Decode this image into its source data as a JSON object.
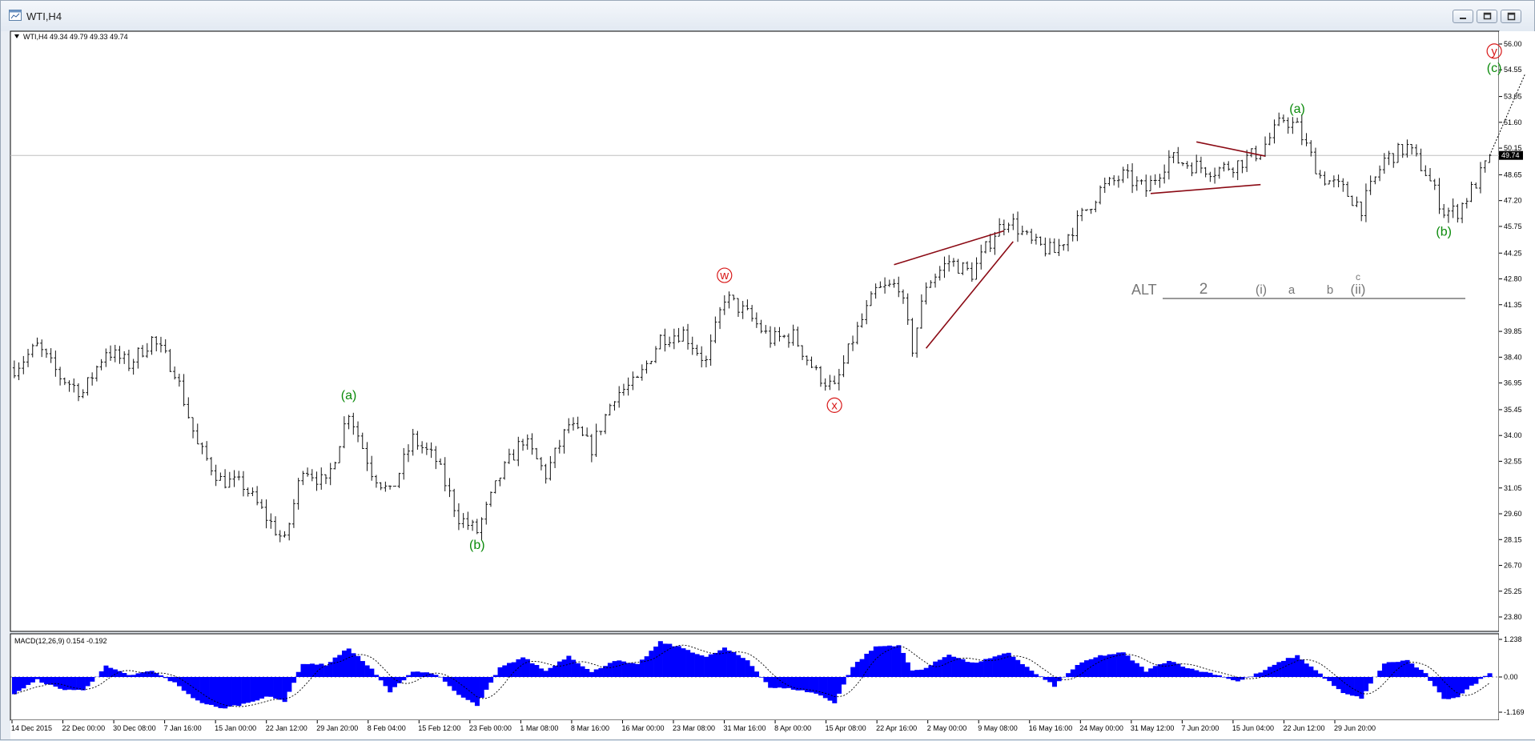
{
  "window": {
    "title": "WTI,H4",
    "icon": "chart-window-icon",
    "buttons": [
      "minimize-icon",
      "restore-icon",
      "close-icon"
    ]
  },
  "price_header": "WTI,H4  49.34 49.79 49.33 49.74",
  "macd_header": "MACD(12,26,9) 0.154 -0.192",
  "colors": {
    "candle": "#111111",
    "wave_green": "#0a8a0a",
    "wave_red": "#d81818",
    "trendline": "#8b0a14",
    "alt_gray": "#777777",
    "macd_hist": "#0000ff",
    "current_price_line": "#c0c0c0"
  },
  "chart_data": [
    {
      "type": "ohlc",
      "symbol": "WTI",
      "timeframe": "H4",
      "last": {
        "open": 49.34,
        "high": 49.79,
        "low": 49.33,
        "close": 49.74
      },
      "y_ticks": [
        "56.00",
        "54.55",
        "53.05",
        "51.60",
        "50.15",
        "48.65",
        "47.20",
        "45.75",
        "44.25",
        "42.80",
        "41.35",
        "39.85",
        "38.40",
        "36.95",
        "35.45",
        "34.00",
        "32.55",
        "31.05",
        "29.60",
        "28.15",
        "26.70",
        "25.25",
        "23.80"
      ],
      "ylim": [
        23.8,
        56.0
      ],
      "current_price_label": "49.74",
      "x_ticks": [
        "14 Dec 2015",
        "22 Dec 00:00",
        "30 Dec 08:00",
        "7 Jan 16:00",
        "15 Jan 00:00",
        "22 Jan 12:00",
        "29 Jan 20:00",
        "8 Feb 04:00",
        "15 Feb 12:00",
        "23 Feb 00:00",
        "1 Mar 08:00",
        "8 Mar 16:00",
        "16 Mar 00:00",
        "23 Mar 08:00",
        "31 Mar 16:00",
        "8 Apr 00:00",
        "15 Apr 08:00",
        "22 Apr 16:00",
        "2 May 00:00",
        "9 May 08:00",
        "16 May 16:00",
        "24 May 00:00",
        "31 May 12:00",
        "7 Jun 20:00",
        "15 Jun 04:00",
        "22 Jun 12:00",
        "29 Jun 20:00"
      ],
      "price_path": [
        [
          0,
          37.8
        ],
        [
          5,
          39.0
        ],
        [
          10,
          37.3
        ],
        [
          15,
          36.4
        ],
        [
          20,
          38.8
        ],
        [
          25,
          38.0
        ],
        [
          30,
          39.4
        ],
        [
          35,
          37.7
        ],
        [
          40,
          33.4
        ],
        [
          45,
          31.5
        ],
        [
          50,
          31.2
        ],
        [
          55,
          29.4
        ],
        [
          59,
          28.0
        ],
        [
          63,
          32.3
        ],
        [
          68,
          31.2
        ],
        [
          73,
          35.4
        ],
        [
          78,
          32.0
        ],
        [
          82,
          30.7
        ],
        [
          87,
          33.8
        ],
        [
          92,
          32.6
        ],
        [
          97,
          29.4
        ],
        [
          101,
          28.6
        ],
        [
          106,
          31.7
        ],
        [
          111,
          33.8
        ],
        [
          116,
          31.8
        ],
        [
          121,
          34.6
        ],
        [
          126,
          33.3
        ],
        [
          131,
          36.3
        ],
        [
          136,
          37.0
        ],
        [
          141,
          39.5
        ],
        [
          146,
          39.8
        ],
        [
          151,
          38.1
        ],
        [
          155,
          41.8
        ],
        [
          160,
          40.8
        ],
        [
          165,
          39.4
        ],
        [
          170,
          39.6
        ],
        [
          175,
          37.5
        ],
        [
          179,
          36.6
        ],
        [
          183,
          39.4
        ],
        [
          188,
          42.1
        ],
        [
          193,
          42.5
        ],
        [
          196,
          38.9
        ],
        [
          199,
          42.5
        ],
        [
          204,
          43.8
        ],
        [
          209,
          43.1
        ],
        [
          214,
          45.4
        ],
        [
          217,
          46.2
        ],
        [
          222,
          44.8
        ],
        [
          227,
          44.3
        ],
        [
          232,
          46.0
        ],
        [
          237,
          47.8
        ],
        [
          242,
          48.6
        ],
        [
          247,
          47.8
        ],
        [
          252,
          49.6
        ],
        [
          257,
          49.2
        ],
        [
          262,
          48.9
        ],
        [
          267,
          49.3
        ],
        [
          272,
          50.0
        ],
        [
          277,
          51.8
        ],
        [
          280,
          51.3
        ],
        [
          285,
          48.6
        ],
        [
          290,
          47.8
        ],
        [
          294,
          46.8
        ],
        [
          299,
          49.5
        ],
        [
          304,
          50.2
        ],
        [
          308,
          48.8
        ],
        [
          312,
          46.6
        ],
        [
          315,
          46.6
        ],
        [
          319,
          48.2
        ],
        [
          322,
          49.6
        ]
      ],
      "projection": {
        "from": 49.74,
        "to": 54.3,
        "style": "dotted"
      },
      "labels": [
        {
          "text": "(a)",
          "color": "wave_green",
          "at_bar": 73,
          "price": 36.3
        },
        {
          "text": "(b)",
          "color": "wave_green",
          "at_bar": 101,
          "price": 27.9
        },
        {
          "text": "w",
          "color": "wave_red",
          "circled": true,
          "at_bar": 155,
          "price": 43.0
        },
        {
          "text": "x",
          "color": "wave_red",
          "circled": true,
          "at_bar": 179,
          "price": 35.7
        },
        {
          "text": "(a)",
          "color": "wave_green",
          "at_bar": 280,
          "price": 52.4
        },
        {
          "text": "(b)",
          "color": "wave_green",
          "at_bar": 312,
          "price": 45.5
        },
        {
          "text": "y",
          "color": "wave_red",
          "circled": true,
          "at_bar": 323,
          "price": 55.6
        },
        {
          "text": "(c)",
          "color": "wave_green",
          "at_bar": 323,
          "price": 54.7
        }
      ],
      "trendlines": [
        {
          "from": [
            192,
            43.6
          ],
          "to": [
            216,
            45.5
          ]
        },
        {
          "from": [
            199,
            38.9
          ],
          "to": [
            218,
            44.9
          ]
        },
        {
          "from": [
            258,
            50.5
          ],
          "to": [
            273,
            49.7
          ]
        },
        {
          "from": [
            248,
            47.6
          ],
          "to": [
            272,
            48.1
          ]
        }
      ],
      "alt_count": {
        "prefix": "ALT",
        "labels": [
          "2",
          "(i)",
          "a",
          "b",
          "c",
          "(ii)"
        ]
      }
    },
    {
      "type": "histogram",
      "name": "MACD(12,26,9)",
      "main": 0.154,
      "signal": -0.192,
      "y_ticks": [
        "1.238",
        "0.00",
        "-1.169"
      ],
      "ylim": [
        -1.169,
        1.238
      ],
      "histogram_path": [
        [
          0,
          -0.55
        ],
        [
          5,
          -0.1
        ],
        [
          10,
          -0.4
        ],
        [
          15,
          -0.45
        ],
        [
          20,
          0.35
        ],
        [
          25,
          0.05
        ],
        [
          30,
          0.2
        ],
        [
          35,
          -0.2
        ],
        [
          40,
          -0.8
        ],
        [
          45,
          -1.05
        ],
        [
          50,
          -0.9
        ],
        [
          55,
          -0.65
        ],
        [
          59,
          -0.8
        ],
        [
          63,
          0.45
        ],
        [
          68,
          0.4
        ],
        [
          73,
          0.95
        ],
        [
          78,
          0.25
        ],
        [
          82,
          -0.5
        ],
        [
          87,
          0.2
        ],
        [
          92,
          0.1
        ],
        [
          97,
          -0.6
        ],
        [
          101,
          -0.95
        ],
        [
          106,
          0.3
        ],
        [
          111,
          0.65
        ],
        [
          116,
          0.2
        ],
        [
          121,
          0.7
        ],
        [
          126,
          0.15
        ],
        [
          131,
          0.55
        ],
        [
          136,
          0.4
        ],
        [
          141,
          1.15
        ],
        [
          146,
          0.95
        ],
        [
          151,
          0.65
        ],
        [
          155,
          0.95
        ],
        [
          160,
          0.55
        ],
        [
          165,
          -0.35
        ],
        [
          170,
          -0.4
        ],
        [
          175,
          -0.55
        ],
        [
          179,
          -0.85
        ],
        [
          183,
          0.35
        ],
        [
          188,
          1.0
        ],
        [
          193,
          1.05
        ],
        [
          196,
          0.2
        ],
        [
          199,
          0.3
        ],
        [
          204,
          0.75
        ],
        [
          209,
          0.45
        ],
        [
          214,
          0.65
        ],
        [
          217,
          0.8
        ],
        [
          222,
          0.2
        ],
        [
          227,
          -0.3
        ],
        [
          232,
          0.4
        ],
        [
          237,
          0.7
        ],
        [
          242,
          0.8
        ],
        [
          247,
          0.2
        ],
        [
          252,
          0.55
        ],
        [
          257,
          0.25
        ],
        [
          262,
          0.1
        ],
        [
          267,
          -0.15
        ],
        [
          272,
          0.15
        ],
        [
          277,
          0.55
        ],
        [
          280,
          0.7
        ],
        [
          285,
          0.1
        ],
        [
          290,
          -0.55
        ],
        [
          294,
          -0.7
        ],
        [
          299,
          0.45
        ],
        [
          304,
          0.55
        ],
        [
          308,
          0.1
        ],
        [
          312,
          -0.75
        ],
        [
          315,
          -0.65
        ],
        [
          319,
          -0.2
        ],
        [
          322,
          0.15
        ]
      ]
    }
  ]
}
